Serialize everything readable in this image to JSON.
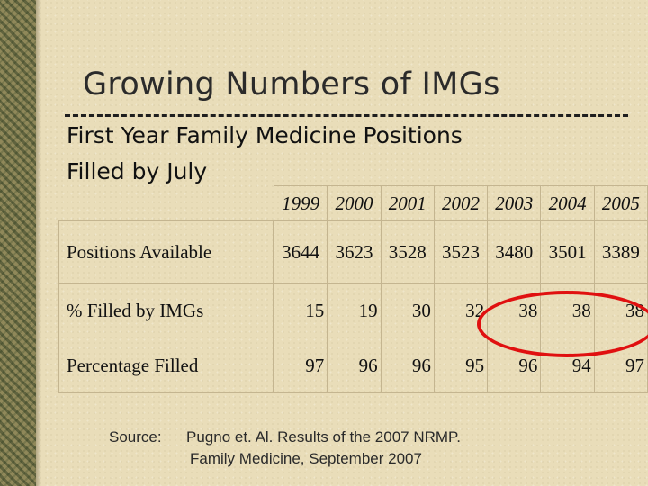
{
  "slide": {
    "title": "Growing Numbers of IMGs",
    "subtitle_line1": "First Year Family Medicine Positions",
    "subtitle_line2": "Filled by July"
  },
  "table": {
    "years": [
      "1999",
      "2000",
      "2001",
      "2002",
      "2003",
      "2004",
      "2005"
    ],
    "rows": [
      {
        "label": "Positions Available",
        "values": [
          "3644",
          "3623",
          "3528",
          "3523",
          "3480",
          "3501",
          "3389"
        ]
      },
      {
        "label": "% Filled by IMGs",
        "values": [
          "15",
          "19",
          "30",
          "32",
          "38",
          "38",
          "38"
        ]
      },
      {
        "label": "Percentage Filled",
        "values": [
          "97",
          "96",
          "96",
          "95",
          "96",
          "94",
          "97"
        ]
      }
    ]
  },
  "highlight": {
    "color": "#e01010"
  },
  "source": {
    "label": "Source:",
    "line1": "Pugno et. Al.  Results of the 2007 NRMP.",
    "line2": "Family Medicine, September 2007"
  }
}
